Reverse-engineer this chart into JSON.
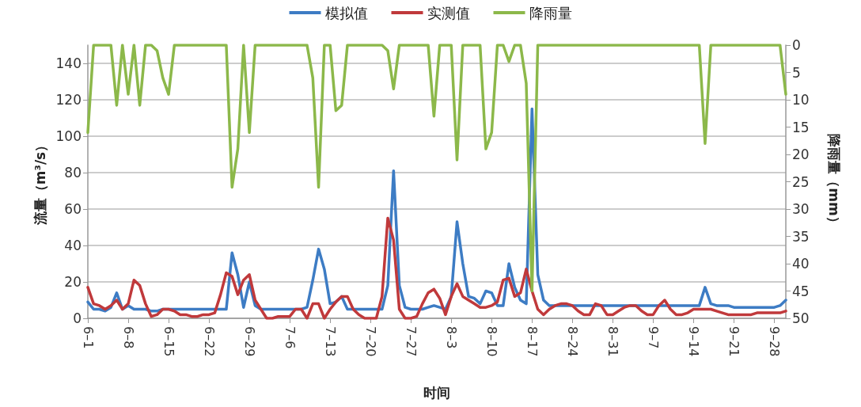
{
  "chart_data": {
    "type": "line",
    "xlabel": "时间",
    "ylabel": "流量（m³/s）",
    "y2label": "降雨量（mm）",
    "categories": [
      "6–1",
      null,
      null,
      null,
      null,
      null,
      null,
      "6–8",
      null,
      null,
      null,
      null,
      null,
      null,
      "6–15",
      null,
      null,
      null,
      null,
      null,
      null,
      "6–22",
      null,
      null,
      null,
      null,
      null,
      null,
      "6–29",
      null,
      null,
      null,
      null,
      null,
      null,
      "7–6",
      null,
      null,
      null,
      null,
      null,
      null,
      "7–13",
      null,
      null,
      null,
      null,
      null,
      null,
      "7–20",
      null,
      null,
      null,
      null,
      null,
      null,
      "7–27",
      null,
      null,
      null,
      null,
      null,
      null,
      "8–3",
      null,
      null,
      null,
      null,
      null,
      null,
      "8–10",
      null,
      null,
      null,
      null,
      null,
      null,
      "8–17",
      null,
      null,
      null,
      null,
      null,
      null,
      "8–24",
      null,
      null,
      null,
      null,
      null,
      null,
      "8–31",
      null,
      null,
      null,
      null,
      null,
      null,
      "9–7",
      null,
      null,
      null,
      null,
      null,
      null,
      "9–14",
      null,
      null,
      null,
      null,
      null,
      null,
      "9–21",
      null,
      null,
      null,
      null,
      null,
      null,
      "9–28",
      null,
      null
    ],
    "series": [
      {
        "name": "模拟值",
        "color": "#3d7cc4",
        "values": [
          9,
          5,
          5,
          4,
          6,
          14,
          5,
          7,
          5,
          5,
          5,
          4,
          4,
          5,
          5,
          5,
          5,
          5,
          5,
          5,
          5,
          5,
          5,
          5,
          5,
          36,
          24,
          6,
          20,
          7,
          5,
          5,
          5,
          5,
          5,
          5,
          5,
          5,
          6,
          21,
          38,
          27,
          8,
          9,
          12,
          5,
          5,
          5,
          5,
          5,
          5,
          5,
          18,
          81,
          18,
          6,
          5,
          5,
          5,
          6,
          7,
          6,
          5,
          12,
          53,
          30,
          12,
          11,
          8,
          15,
          14,
          7,
          7,
          30,
          17,
          10,
          8,
          115,
          24,
          10,
          7,
          7,
          7,
          7,
          7,
          7,
          7,
          7,
          7,
          7,
          7,
          7,
          7,
          7,
          7,
          7,
          7,
          7,
          7,
          7,
          7,
          7,
          7,
          7,
          7,
          7,
          7,
          17,
          8,
          7,
          7,
          7,
          6,
          6,
          6,
          6,
          6,
          6,
          6,
          6,
          7,
          10
        ]
      },
      {
        "name": "实测值",
        "color": "#c0393b",
        "values": [
          17,
          8,
          7,
          5,
          7,
          10,
          5,
          8,
          21,
          18,
          8,
          1,
          2,
          5,
          5,
          4,
          2,
          2,
          1,
          1,
          2,
          2,
          3,
          13,
          25,
          23,
          13,
          21,
          24,
          10,
          5,
          0,
          0,
          1,
          1,
          1,
          5,
          5,
          0,
          8,
          8,
          0,
          5,
          9,
          12,
          12,
          5,
          2,
          0,
          0,
          0,
          12,
          55,
          43,
          5,
          0,
          0,
          1,
          8,
          14,
          16,
          11,
          2,
          12,
          19,
          12,
          10,
          8,
          6,
          6,
          7,
          9,
          21,
          22,
          12,
          14,
          27,
          15,
          5,
          2,
          5,
          7,
          8,
          8,
          7,
          4,
          2,
          2,
          8,
          7,
          2,
          2,
          4,
          6,
          7,
          7,
          4,
          2,
          2,
          7,
          10,
          5,
          2,
          2,
          3,
          5,
          5,
          5,
          5,
          4,
          3,
          2,
          2,
          2,
          2,
          2,
          3,
          3,
          3,
          3,
          3,
          4
        ]
      },
      {
        "name": "降雨量",
        "color": "#8cb84a",
        "axis": "y2",
        "values": [
          16,
          0,
          0,
          0,
          0,
          11,
          0,
          9,
          0,
          11,
          0,
          0,
          1,
          6,
          9,
          0,
          0,
          0,
          0,
          0,
          0,
          0,
          0,
          0,
          0,
          26,
          19,
          0,
          16,
          0,
          0,
          0,
          0,
          0,
          0,
          0,
          0,
          0,
          0,
          6,
          26,
          0,
          0,
          12,
          11,
          0,
          0,
          0,
          0,
          0,
          0,
          0,
          1,
          8,
          0,
          0,
          0,
          0,
          0,
          0,
          13,
          0,
          0,
          0,
          21,
          0,
          0,
          0,
          0,
          19,
          16,
          0,
          0,
          3,
          0,
          0,
          7,
          45,
          0,
          0,
          0,
          0,
          0,
          0,
          0,
          0,
          0,
          0,
          0,
          0,
          0,
          0,
          0,
          0,
          0,
          0,
          0,
          0,
          0,
          0,
          0,
          0,
          0,
          0,
          0,
          0,
          0,
          18,
          0,
          0,
          0,
          0,
          0,
          0,
          0,
          0,
          0,
          0,
          0,
          0,
          0,
          9
        ]
      }
    ],
    "ylim": [
      0,
      150
    ],
    "yticks": [
      0,
      20,
      40,
      60,
      80,
      100,
      120,
      140
    ],
    "y2lim": [
      50,
      0
    ],
    "y2ticks": [
      0,
      5,
      10,
      15,
      20,
      25,
      30,
      35,
      40,
      45,
      50
    ],
    "grid": "y",
    "legend": "top",
    "marker": "none",
    "line_style": "solid"
  }
}
